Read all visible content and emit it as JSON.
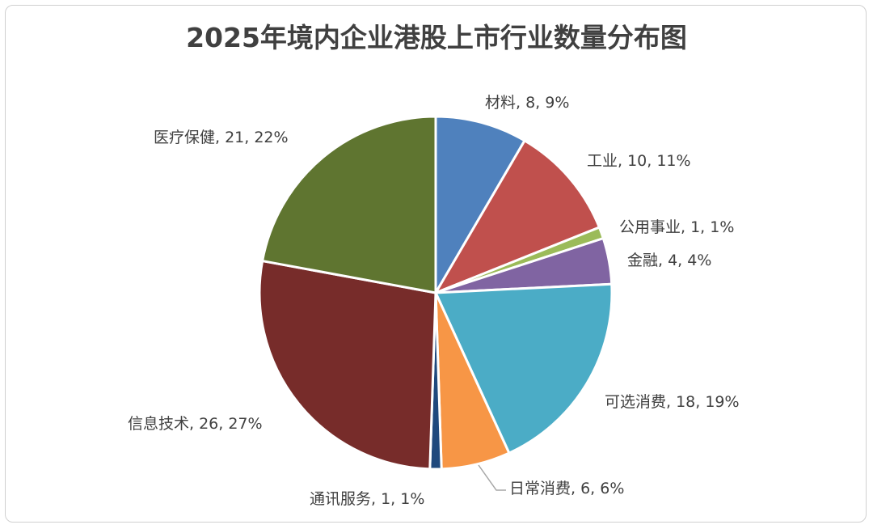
{
  "chart_data": {
    "type": "pie",
    "title": "2025年境内企业港股上市行业数量分布图",
    "slices": [
      {
        "name": "材料",
        "value": 8,
        "percent": "9%",
        "label": "材料, 8, 9%",
        "color": "#4f81bd"
      },
      {
        "name": "工业",
        "value": 10,
        "percent": "11%",
        "label": "工业, 10, 11%",
        "color": "#c0504d"
      },
      {
        "name": "公用事业",
        "value": 1,
        "percent": "1%",
        "label": "公用事业, 1, 1%",
        "color": "#9bbb59"
      },
      {
        "name": "金融",
        "value": 4,
        "percent": "4%",
        "label": "金融, 4, 4%",
        "color": "#8064a2"
      },
      {
        "name": "可选消费",
        "value": 18,
        "percent": "19%",
        "label": "可选消费, 18, 19%",
        "color": "#4bacc6"
      },
      {
        "name": "日常消费",
        "value": 6,
        "percent": "6%",
        "label": "日常消费, 6, 6%",
        "color": "#f79646"
      },
      {
        "name": "通讯服务",
        "value": 1,
        "percent": "1%",
        "label": "通讯服务, 1, 1%",
        "color": "#1f497d"
      },
      {
        "name": "信息技术",
        "value": 26,
        "percent": "27%",
        "label": "信息技术, 26, 27%",
        "color": "#772c2a"
      },
      {
        "name": "医疗保健",
        "value": 21,
        "percent": "22%",
        "label": "医疗保健, 21, 22%",
        "color": "#5f7530"
      }
    ]
  }
}
